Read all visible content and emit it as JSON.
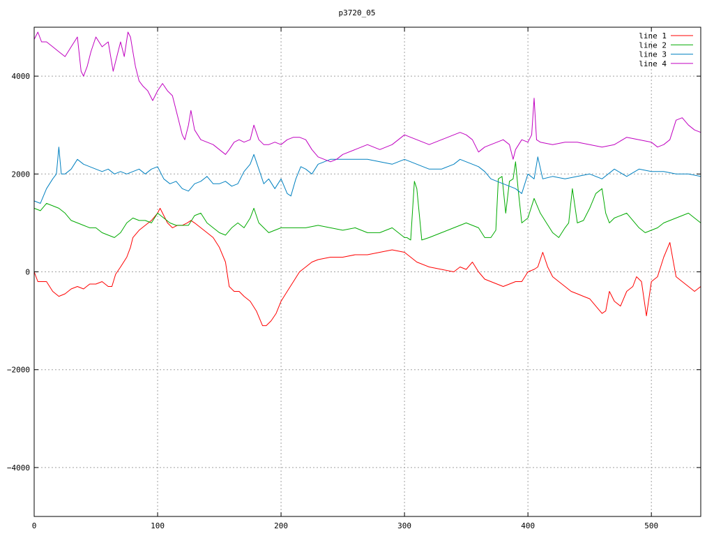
{
  "chart_data": {
    "type": "line",
    "title": "p3720_05",
    "xlabel": "",
    "ylabel": "",
    "xlim": [
      0,
      540
    ],
    "ylim": [
      -5000,
      5000
    ],
    "x_ticks": [
      0,
      100,
      200,
      300,
      400,
      500
    ],
    "y_ticks": [
      -4000,
      -2000,
      0,
      2000,
      4000
    ],
    "x_tick_labels": [
      "0",
      "100",
      "200",
      "300",
      "400",
      "500"
    ],
    "y_tick_labels": [
      "−4000",
      "−2000",
      "0",
      "2000",
      "4000"
    ],
    "grid": true,
    "legend_position": "top-right",
    "series": [
      {
        "name": "line 1",
        "color": "#ff0000",
        "x": [
          0,
          3,
          6,
          10,
          15,
          20,
          25,
          30,
          35,
          40,
          45,
          50,
          55,
          60,
          63,
          66,
          70,
          75,
          78,
          80,
          85,
          90,
          95,
          100,
          102,
          105,
          108,
          112,
          116,
          120,
          124,
          127,
          130,
          135,
          140,
          145,
          150,
          155,
          158,
          162,
          166,
          170,
          175,
          180,
          185,
          188,
          192,
          196,
          200,
          205,
          210,
          215,
          220,
          225,
          230,
          240,
          250,
          260,
          270,
          280,
          290,
          300,
          305,
          310,
          320,
          330,
          340,
          345,
          350,
          355,
          360,
          365,
          370,
          380,
          390,
          395,
          400,
          405,
          408,
          412,
          416,
          420,
          425,
          430,
          435,
          440,
          445,
          450,
          455,
          460,
          463,
          466,
          470,
          475,
          480,
          485,
          488,
          492,
          496,
          500,
          505,
          510,
          515,
          520,
          525,
          530,
          535,
          540
        ],
        "y": [
          0,
          -200,
          -200,
          -200,
          -400,
          -500,
          -450,
          -350,
          -300,
          -350,
          -250,
          -250,
          -200,
          -300,
          -300,
          -50,
          100,
          300,
          500,
          700,
          850,
          950,
          1050,
          1200,
          1300,
          1150,
          1000,
          900,
          950,
          950,
          1000,
          1050,
          1000,
          900,
          800,
          700,
          500,
          200,
          -300,
          -400,
          -400,
          -500,
          -600,
          -800,
          -1100,
          -1100,
          -1000,
          -850,
          -600,
          -400,
          -200,
          0,
          100,
          200,
          250,
          300,
          300,
          350,
          350,
          400,
          450,
          400,
          300,
          200,
          100,
          50,
          0,
          100,
          50,
          200,
          0,
          -150,
          -200,
          -300,
          -200,
          -200,
          0,
          50,
          100,
          400,
          100,
          -100,
          -200,
          -300,
          -400,
          -450,
          -500,
          -550,
          -700,
          -850,
          -800,
          -400,
          -600,
          -700,
          -400,
          -300,
          -100,
          -200,
          -900,
          -200,
          -100,
          300,
          600,
          -100,
          -200,
          -300,
          -400,
          -300
        ]
      },
      {
        "name": "line 2",
        "color": "#00aa00",
        "x": [
          0,
          5,
          10,
          15,
          20,
          25,
          30,
          35,
          40,
          45,
          50,
          55,
          60,
          65,
          70,
          75,
          80,
          85,
          90,
          95,
          100,
          105,
          110,
          115,
          120,
          125,
          130,
          135,
          140,
          145,
          150,
          155,
          160,
          165,
          170,
          175,
          178,
          182,
          186,
          190,
          195,
          200,
          210,
          220,
          230,
          240,
          250,
          260,
          270,
          280,
          290,
          300,
          302,
          305,
          308,
          310,
          314,
          320,
          330,
          340,
          350,
          360,
          365,
          370,
          374,
          376,
          379,
          382,
          385,
          388,
          390,
          392,
          395,
          400,
          405,
          410,
          415,
          420,
          425,
          430,
          433,
          436,
          440,
          445,
          450,
          455,
          460,
          463,
          466,
          470,
          480,
          490,
          495,
          500,
          505,
          510,
          520,
          530,
          535,
          540
        ],
        "y": [
          1300,
          1250,
          1400,
          1350,
          1300,
          1200,
          1050,
          1000,
          950,
          900,
          900,
          800,
          750,
          700,
          800,
          1000,
          1100,
          1050,
          1050,
          1000,
          1200,
          1100,
          1000,
          950,
          950,
          950,
          1150,
          1200,
          1000,
          900,
          800,
          750,
          900,
          1000,
          900,
          1100,
          1300,
          1000,
          900,
          800,
          850,
          900,
          900,
          900,
          950,
          900,
          850,
          900,
          800,
          800,
          900,
          700,
          700,
          650,
          1850,
          1700,
          650,
          700,
          800,
          900,
          1000,
          900,
          700,
          700,
          850,
          1900,
          1950,
          1200,
          1850,
          1900,
          2250,
          1700,
          1000,
          1100,
          1500,
          1200,
          1000,
          800,
          700,
          900,
          1000,
          1700,
          1000,
          1050,
          1300,
          1600,
          1700,
          1200,
          1000,
          1100,
          1200,
          900,
          800,
          850,
          900,
          1000,
          1100,
          1200,
          1100,
          1000
        ]
      },
      {
        "name": "line 3",
        "color": "#0080c0",
        "x": [
          0,
          5,
          10,
          15,
          18,
          20,
          22,
          25,
          30,
          35,
          40,
          45,
          50,
          55,
          60,
          65,
          70,
          75,
          80,
          85,
          90,
          95,
          100,
          105,
          110,
          115,
          120,
          125,
          130,
          135,
          140,
          145,
          150,
          155,
          160,
          165,
          170,
          175,
          178,
          182,
          186,
          190,
          195,
          200,
          205,
          208,
          212,
          216,
          220,
          225,
          230,
          240,
          250,
          260,
          270,
          280,
          290,
          300,
          305,
          310,
          320,
          330,
          340,
          345,
          350,
          355,
          360,
          365,
          370,
          380,
          390,
          395,
          400,
          405,
          408,
          412,
          420,
          430,
          440,
          450,
          460,
          470,
          480,
          490,
          500,
          510,
          520,
          530,
          540
        ],
        "y": [
          1450,
          1400,
          1700,
          1900,
          2000,
          2550,
          2000,
          2000,
          2100,
          2300,
          2200,
          2150,
          2100,
          2050,
          2100,
          2000,
          2050,
          2000,
          2050,
          2100,
          2000,
          2100,
          2150,
          1900,
          1800,
          1850,
          1700,
          1650,
          1800,
          1850,
          1950,
          1800,
          1800,
          1850,
          1750,
          1800,
          2050,
          2200,
          2400,
          2100,
          1800,
          1900,
          1700,
          1900,
          1600,
          1550,
          1900,
          2150,
          2100,
          2000,
          2200,
          2300,
          2300,
          2300,
          2300,
          2250,
          2200,
          2300,
          2250,
          2200,
          2100,
          2100,
          2200,
          2300,
          2250,
          2200,
          2150,
          2050,
          1900,
          1800,
          1700,
          1600,
          2000,
          1900,
          2350,
          1900,
          1950,
          1900,
          1950,
          2000,
          1900,
          2100,
          1950,
          2100,
          2050,
          2050,
          2000,
          2000,
          1950
        ]
      },
      {
        "name": "line 4",
        "color": "#c000c0",
        "x": [
          0,
          3,
          6,
          10,
          15,
          20,
          25,
          30,
          35,
          38,
          40,
          43,
          46,
          50,
          55,
          60,
          64,
          66,
          70,
          73,
          76,
          78,
          80,
          82,
          85,
          88,
          92,
          96,
          100,
          104,
          108,
          112,
          116,
          120,
          122,
          125,
          127,
          130,
          135,
          140,
          145,
          150,
          155,
          158,
          162,
          166,
          170,
          175,
          178,
          182,
          186,
          190,
          195,
          200,
          205,
          210,
          215,
          220,
          225,
          230,
          235,
          240,
          245,
          250,
          260,
          270,
          280,
          290,
          300,
          310,
          320,
          330,
          340,
          345,
          350,
          355,
          360,
          365,
          370,
          380,
          385,
          388,
          390,
          395,
          400,
          403,
          405,
          407,
          410,
          420,
          430,
          440,
          450,
          460,
          470,
          480,
          490,
          500,
          505,
          510,
          515,
          520,
          525,
          530,
          535,
          540
        ],
        "y": [
          4750,
          4900,
          4700,
          4700,
          4600,
          4500,
          4400,
          4600,
          4800,
          4100,
          4000,
          4200,
          4500,
          4800,
          4600,
          4700,
          4100,
          4300,
          4700,
          4400,
          4900,
          4800,
          4500,
          4200,
          3900,
          3800,
          3700,
          3500,
          3700,
          3850,
          3700,
          3600,
          3200,
          2800,
          2700,
          3000,
          3300,
          2900,
          2700,
          2650,
          2600,
          2500,
          2400,
          2500,
          2650,
          2700,
          2650,
          2700,
          3000,
          2700,
          2600,
          2600,
          2650,
          2600,
          2700,
          2750,
          2750,
          2700,
          2500,
          2350,
          2300,
          2250,
          2300,
          2400,
          2500,
          2600,
          2500,
          2600,
          2800,
          2700,
          2600,
          2700,
          2800,
          2850,
          2800,
          2700,
          2450,
          2550,
          2600,
          2700,
          2600,
          2300,
          2500,
          2700,
          2650,
          2800,
          3550,
          2700,
          2650,
          2600,
          2650,
          2650,
          2600,
          2550,
          2600,
          2750,
          2700,
          2650,
          2550,
          2600,
          2700,
          3100,
          3150,
          3000,
          2900,
          2850
        ]
      }
    ]
  }
}
